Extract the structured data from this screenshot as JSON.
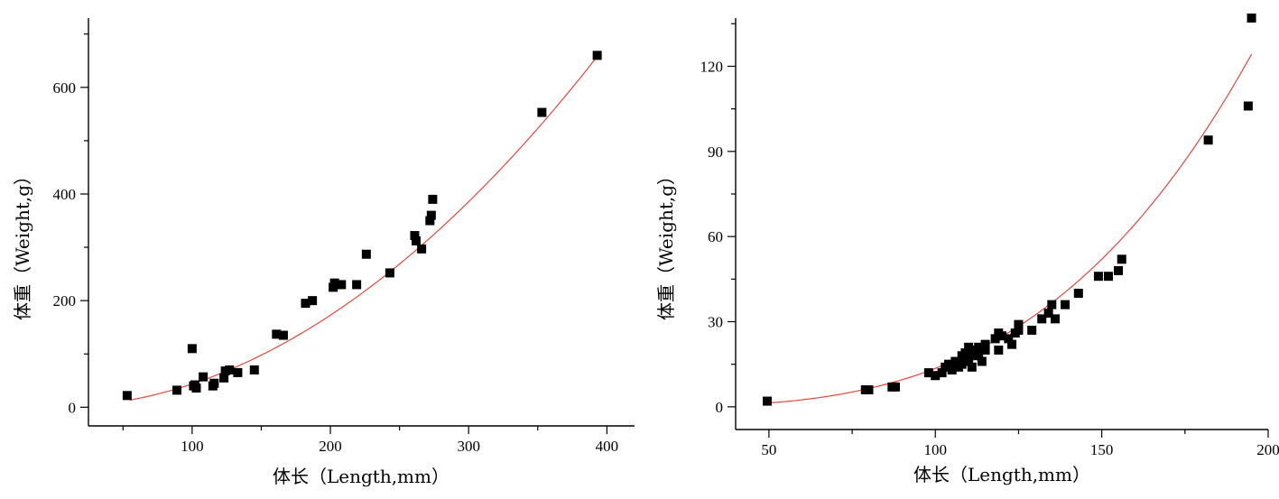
{
  "chart_data": [
    {
      "type": "scatter",
      "title": "",
      "xlabel": "体长（Length,mm）",
      "ylabel": "体重（Weight,g）",
      "xlim": [
        25,
        420
      ],
      "ylim": [
        -35,
        730
      ],
      "x_ticks": [
        100,
        200,
        300,
        400
      ],
      "y_ticks": [
        0,
        200,
        400,
        600
      ],
      "grid": false,
      "colors": {
        "points": "#000000",
        "fit": "#e8463c"
      },
      "fit": {
        "model": "power",
        "a": 0.0048,
        "b": 1.98,
        "x_range": [
          55,
          392
        ]
      },
      "points": [
        [
          53,
          22
        ],
        [
          89,
          32
        ],
        [
          100,
          110
        ],
        [
          101,
          40
        ],
        [
          102,
          42
        ],
        [
          103,
          36
        ],
        [
          108,
          57
        ],
        [
          115,
          40
        ],
        [
          116,
          45
        ],
        [
          123,
          55
        ],
        [
          124,
          68
        ],
        [
          127,
          70
        ],
        [
          133,
          65
        ],
        [
          145,
          70
        ],
        [
          161,
          137
        ],
        [
          166,
          135
        ],
        [
          182,
          195
        ],
        [
          187,
          200
        ],
        [
          202,
          225
        ],
        [
          203,
          233
        ],
        [
          205,
          230
        ],
        [
          208,
          230
        ],
        [
          219,
          230
        ],
        [
          226,
          287
        ],
        [
          243,
          252
        ],
        [
          261,
          322
        ],
        [
          262,
          312
        ],
        [
          266,
          297
        ],
        [
          272,
          350
        ],
        [
          273,
          360
        ],
        [
          274,
          390
        ],
        [
          353,
          553
        ],
        [
          393,
          660
        ]
      ]
    },
    {
      "type": "scatter",
      "title": "",
      "xlabel": "体长（Length,mm）",
      "ylabel": "体重（Weight,g）",
      "xlim": [
        40,
        200
      ],
      "ylim": [
        -8,
        137
      ],
      "x_ticks": [
        50,
        100,
        150,
        200
      ],
      "y_ticks": [
        0,
        30,
        60,
        90,
        120
      ],
      "grid": false,
      "colors": {
        "points": "#000000",
        "fit": "#e8463c"
      },
      "fit": {
        "model": "power",
        "a": 3.1e-06,
        "b": 3.32,
        "x_range": [
          50,
          195
        ]
      },
      "points": [
        [
          49.5,
          2
        ],
        [
          79,
          6
        ],
        [
          80,
          6
        ],
        [
          87,
          7
        ],
        [
          88,
          7
        ],
        [
          98,
          12
        ],
        [
          100,
          11
        ],
        [
          102,
          12
        ],
        [
          103,
          14
        ],
        [
          104,
          15
        ],
        [
          105,
          13
        ],
        [
          106,
          16
        ],
        [
          107,
          14
        ],
        [
          108,
          15
        ],
        [
          108,
          18
        ],
        [
          109,
          19
        ],
        [
          109,
          16
        ],
        [
          110,
          21
        ],
        [
          110,
          17
        ],
        [
          111,
          20
        ],
        [
          111,
          14
        ],
        [
          112,
          18
        ],
        [
          113,
          19
        ],
        [
          113,
          21
        ],
        [
          114,
          16
        ],
        [
          115,
          22
        ],
        [
          115,
          20
        ],
        [
          118,
          24
        ],
        [
          119,
          26
        ],
        [
          119,
          20
        ],
        [
          120,
          25
        ],
        [
          122,
          24
        ],
        [
          123,
          22
        ],
        [
          124,
          26
        ],
        [
          125,
          29
        ],
        [
          125,
          27
        ],
        [
          129,
          27
        ],
        [
          132,
          31
        ],
        [
          134,
          33
        ],
        [
          135,
          36
        ],
        [
          136,
          31
        ],
        [
          139,
          36
        ],
        [
          143,
          40
        ],
        [
          149,
          46
        ],
        [
          152,
          46
        ],
        [
          155,
          48
        ],
        [
          156,
          52
        ],
        [
          182,
          94
        ],
        [
          194,
          106
        ],
        [
          195,
          137
        ]
      ]
    }
  ]
}
